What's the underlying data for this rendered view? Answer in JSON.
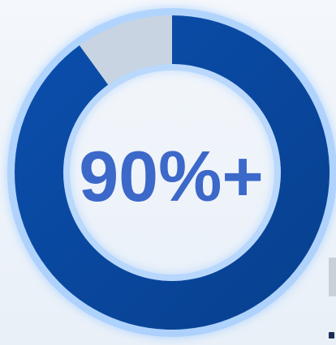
{
  "chart_data": {
    "type": "pie",
    "style": "donut",
    "center_label": "90%+",
    "slices": [
      {
        "value": 90,
        "color": "#0b4aa2"
      },
      {
        "value": 10,
        "color": "#c8d4e1"
      }
    ]
  },
  "colors": {
    "background": "#eef3f9",
    "glow": "#8ec2ff",
    "label_text": "#3b68c9"
  }
}
